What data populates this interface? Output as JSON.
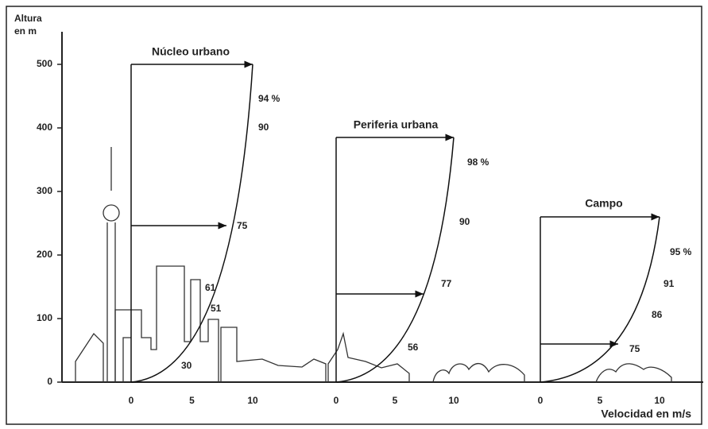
{
  "y_axis": {
    "label_line1": "Altura",
    "label_line2": "en m",
    "ticks": [
      "500",
      "400",
      "300",
      "200",
      "100",
      "0"
    ]
  },
  "x_axis_label": "Velocidad en m/s",
  "profiles": [
    {
      "title": "Núcleo urbano",
      "x_ticks": [
        "0",
        "5",
        "10"
      ],
      "labels": [
        "94 %",
        "90",
        "75",
        "61",
        "51",
        "30"
      ]
    },
    {
      "title": "Periferia urbana",
      "x_ticks": [
        "0",
        "5",
        "10"
      ],
      "labels": [
        "98 %",
        "90",
        "77",
        "56"
      ]
    },
    {
      "title": "Campo",
      "x_ticks": [
        "0",
        "5",
        "10"
      ],
      "labels": [
        "95 %",
        "91",
        "86",
        "75"
      ]
    }
  ]
}
